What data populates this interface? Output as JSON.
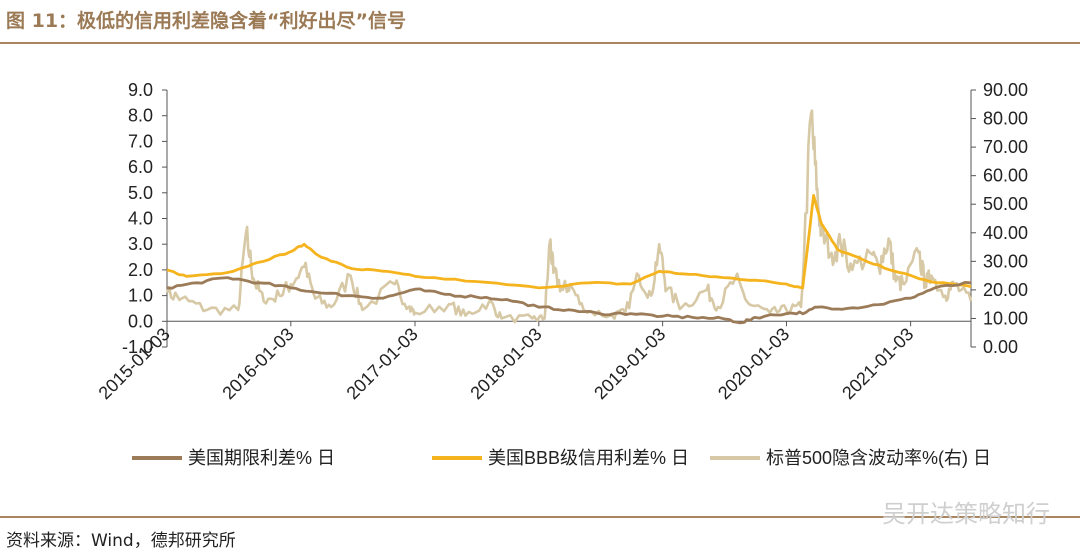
{
  "figure": {
    "title": "图 11：极低的信用利差隐含着“利好出尽”信号",
    "source": "资料来源：Wind，德邦研究所",
    "watermark": "吴开达策略知行"
  },
  "colors": {
    "term_spread": "#9c7b58",
    "bbb_spread": "#f5b41e",
    "vix": "#d7c9a5",
    "rule": "#a8865f",
    "title": "#9b7a55"
  },
  "chart_data": {
    "type": "line",
    "x_ticks": [
      "2015-01-03",
      "2016-01-03",
      "2017-01-03",
      "2018-01-03",
      "2019-01-03",
      "2020-01-03",
      "2021-01-03"
    ],
    "x_range": [
      "2015-01-03",
      "2021-06-30"
    ],
    "y_left": {
      "range": [
        -1.0,
        9.0
      ],
      "ticks": [
        "9.0",
        "8.0",
        "7.0",
        "6.0",
        "5.0",
        "4.0",
        "3.0",
        "2.0",
        "1.0",
        "0.0",
        "-1.0"
      ]
    },
    "y_right": {
      "range": [
        0,
        90
      ],
      "ticks": [
        "90.00",
        "80.00",
        "70.00",
        "60.00",
        "50.00",
        "40.00",
        "30.00",
        "20.00",
        "10.00",
        "0.00"
      ]
    },
    "legend_position": "bottom",
    "series": [
      {
        "name": "美国期限利差% 日",
        "axis": "left",
        "x": [
          "2015-01-03",
          "2015-04-01",
          "2015-07-01",
          "2015-10-01",
          "2016-01-03",
          "2016-04-01",
          "2016-07-01",
          "2016-10-01",
          "2017-01-03",
          "2017-04-01",
          "2017-07-01",
          "2017-10-01",
          "2018-01-03",
          "2018-04-01",
          "2018-07-01",
          "2018-10-01",
          "2019-01-03",
          "2019-04-01",
          "2019-07-01",
          "2019-08-27",
          "2019-10-01",
          "2020-01-03",
          "2020-03-01",
          "2020-04-01",
          "2020-07-01",
          "2020-10-01",
          "2021-01-03",
          "2021-03-15",
          "2021-06-30"
        ],
        "y": [
          1.3,
          1.5,
          1.7,
          1.5,
          1.3,
          1.1,
          1.0,
          0.9,
          1.25,
          1.05,
          0.95,
          0.85,
          0.55,
          0.45,
          0.3,
          0.3,
          0.2,
          0.15,
          0.1,
          -0.05,
          0.15,
          0.3,
          0.35,
          0.55,
          0.5,
          0.65,
          0.9,
          1.3,
          1.5
        ]
      },
      {
        "name": "美国BBB级信用利差% 日",
        "axis": "left",
        "x": [
          "2015-01-03",
          "2015-03-01",
          "2015-07-01",
          "2015-10-01",
          "2016-01-01",
          "2016-02-11",
          "2016-04-01",
          "2016-07-01",
          "2016-10-01",
          "2017-01-03",
          "2017-07-01",
          "2018-01-03",
          "2018-06-01",
          "2018-10-01",
          "2018-12-24",
          "2019-03-01",
          "2019-07-01",
          "2019-10-01",
          "2020-01-03",
          "2020-02-20",
          "2020-03-23",
          "2020-04-15",
          "2020-06-01",
          "2020-09-01",
          "2020-12-01",
          "2021-03-01",
          "2021-06-30"
        ],
        "y": [
          2.0,
          1.75,
          1.9,
          2.3,
          2.7,
          3.0,
          2.5,
          2.05,
          1.95,
          1.75,
          1.55,
          1.3,
          1.5,
          1.45,
          1.95,
          1.85,
          1.7,
          1.6,
          1.45,
          1.3,
          4.9,
          3.8,
          2.8,
          2.3,
          1.9,
          1.55,
          1.35
        ]
      },
      {
        "name": "标普500隐含波动率%(右) 日",
        "axis": "right",
        "x": [
          "2015-01-03",
          "2015-02-15",
          "2015-05-01",
          "2015-08-01",
          "2015-08-24",
          "2015-09-15",
          "2015-10-15",
          "2015-12-01",
          "2016-01-03",
          "2016-02-11",
          "2016-03-15",
          "2016-05-01",
          "2016-06-27",
          "2016-08-01",
          "2016-11-04",
          "2016-12-15",
          "2017-01-03",
          "2017-04-13",
          "2017-06-01",
          "2017-08-10",
          "2017-09-15",
          "2017-12-15",
          "2018-01-20",
          "2018-02-05",
          "2018-02-15",
          "2018-03-15",
          "2018-04-05",
          "2018-05-15",
          "2018-08-01",
          "2018-09-15",
          "2018-10-25",
          "2018-11-30",
          "2018-12-24",
          "2019-01-15",
          "2019-03-01",
          "2019-05-13",
          "2019-06-15",
          "2019-08-05",
          "2019-09-15",
          "2019-11-15",
          "2020-01-03",
          "2020-02-15",
          "2020-03-16",
          "2020-04-01",
          "2020-04-15",
          "2020-05-15",
          "2020-06-11",
          "2020-07-15",
          "2020-09-05",
          "2020-10-01",
          "2020-10-30",
          "2020-11-20",
          "2020-12-15",
          "2021-01-27",
          "2021-02-15",
          "2021-03-05",
          "2021-04-15",
          "2021-05-12",
          "2021-06-30"
        ],
        "y": [
          19,
          17,
          13,
          13,
          40,
          24,
          16,
          18,
          22,
          28,
          17,
          14,
          25,
          13,
          22,
          14,
          12,
          15,
          11,
          16,
          10,
          10,
          10,
          37,
          26,
          20,
          22,
          13,
          11,
          12,
          25,
          18,
          36,
          20,
          14,
          20,
          14,
          24,
          15,
          12,
          13,
          14,
          82,
          55,
          40,
          33,
          36,
          27,
          33,
          28,
          38,
          23,
          22,
          33,
          22,
          25,
          18,
          22,
          16
        ]
      }
    ]
  }
}
